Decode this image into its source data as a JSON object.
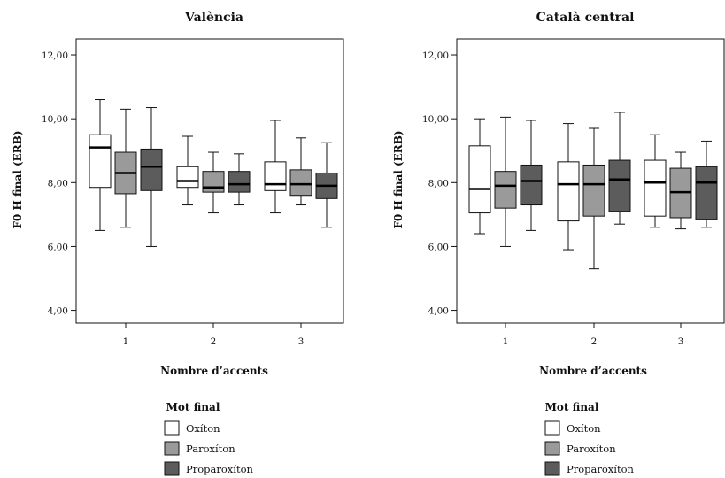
{
  "chart_data": [
    {
      "type": "box",
      "title": "València",
      "xlabel": "Nombre d’accents",
      "ylabel": "F0 H final (ERB)",
      "ylim": [
        3.6,
        12.5
      ],
      "yticks": [
        "4,00",
        "6,00",
        "8,00",
        "10,00",
        "12,00"
      ],
      "categories": [
        "1",
        "2",
        "3"
      ],
      "legend": {
        "title": "Mot final",
        "entries": [
          "Oxíton",
          "Paroxíton",
          "Proparoxíton"
        ],
        "placement": "bottom"
      },
      "series": [
        {
          "name": "Oxíton",
          "color": "#ffffff",
          "boxes": [
            {
              "min": 6.5,
              "q1": 7.85,
              "median": 9.1,
              "q3": 9.5,
              "max": 10.6
            },
            {
              "min": 7.3,
              "q1": 7.85,
              "median": 8.05,
              "q3": 8.5,
              "max": 9.45
            },
            {
              "min": 7.05,
              "q1": 7.75,
              "median": 7.95,
              "q3": 8.65,
              "max": 9.95
            }
          ]
        },
        {
          "name": "Paroxíton",
          "color": "#9a9a9a",
          "boxes": [
            {
              "min": 6.6,
              "q1": 7.65,
              "median": 8.3,
              "q3": 8.95,
              "max": 10.3
            },
            {
              "min": 7.05,
              "q1": 7.7,
              "median": 7.85,
              "q3": 8.35,
              "max": 8.95
            },
            {
              "min": 7.3,
              "q1": 7.6,
              "median": 7.95,
              "q3": 8.4,
              "max": 9.4
            }
          ]
        },
        {
          "name": "Proparoxíton",
          "color": "#5c5c5c",
          "boxes": [
            {
              "min": 6.0,
              "q1": 7.75,
              "median": 8.5,
              "q3": 9.05,
              "max": 10.35
            },
            {
              "min": 7.3,
              "q1": 7.7,
              "median": 7.95,
              "q3": 8.35,
              "max": 8.9
            },
            {
              "min": 6.6,
              "q1": 7.5,
              "median": 7.9,
              "q3": 8.3,
              "max": 9.25
            }
          ]
        }
      ]
    },
    {
      "type": "box",
      "title": "Català central",
      "xlabel": "Nombre d’accents",
      "ylabel": "F0 H final (ERB)",
      "ylim": [
        3.6,
        12.5
      ],
      "yticks": [
        "4,00",
        "6,00",
        "8,00",
        "10,00",
        "12,00"
      ],
      "categories": [
        "1",
        "2",
        "3"
      ],
      "legend": {
        "title": "Mot final",
        "entries": [
          "Oxíton",
          "Paroxíton",
          "Proparoxíton"
        ],
        "placement": "bottom"
      },
      "series": [
        {
          "name": "Oxíton",
          "color": "#ffffff",
          "boxes": [
            {
              "min": 6.4,
              "q1": 7.05,
              "median": 7.8,
              "q3": 9.15,
              "max": 10.0
            },
            {
              "min": 5.9,
              "q1": 6.8,
              "median": 7.95,
              "q3": 8.65,
              "max": 9.85
            },
            {
              "min": 6.6,
              "q1": 6.95,
              "median": 8.0,
              "q3": 8.7,
              "max": 9.5
            }
          ]
        },
        {
          "name": "Paroxíton",
          "color": "#9a9a9a",
          "boxes": [
            {
              "min": 6.0,
              "q1": 7.2,
              "median": 7.9,
              "q3": 8.35,
              "max": 10.05
            },
            {
              "min": 5.3,
              "q1": 6.95,
              "median": 7.95,
              "q3": 8.55,
              "max": 9.7
            },
            {
              "min": 6.55,
              "q1": 6.9,
              "median": 7.7,
              "q3": 8.45,
              "max": 8.95
            }
          ]
        },
        {
          "name": "Proparoxíton",
          "color": "#5c5c5c",
          "boxes": [
            {
              "min": 6.5,
              "q1": 7.3,
              "median": 8.05,
              "q3": 8.55,
              "max": 9.95
            },
            {
              "min": 6.7,
              "q1": 7.1,
              "median": 8.1,
              "q3": 8.7,
              "max": 10.2
            },
            {
              "min": 6.6,
              "q1": 6.85,
              "median": 8.0,
              "q3": 8.5,
              "max": 9.3
            }
          ]
        }
      ]
    }
  ]
}
